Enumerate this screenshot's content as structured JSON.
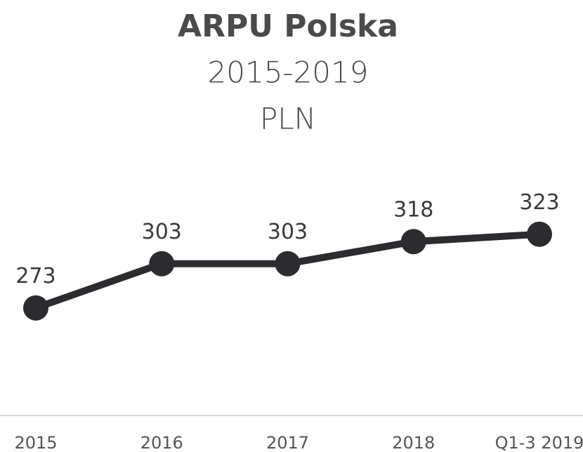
{
  "chart_data": {
    "type": "line",
    "title": "ARPU Polska",
    "subtitle": "2015-2019",
    "unit": "PLN",
    "categories": [
      "2015",
      "2016",
      "2017",
      "2018",
      "Q1-3 2019"
    ],
    "values": [
      273,
      303,
      303,
      318,
      323
    ],
    "color": "#2b2b30",
    "ylim": [
      200,
      360
    ]
  }
}
